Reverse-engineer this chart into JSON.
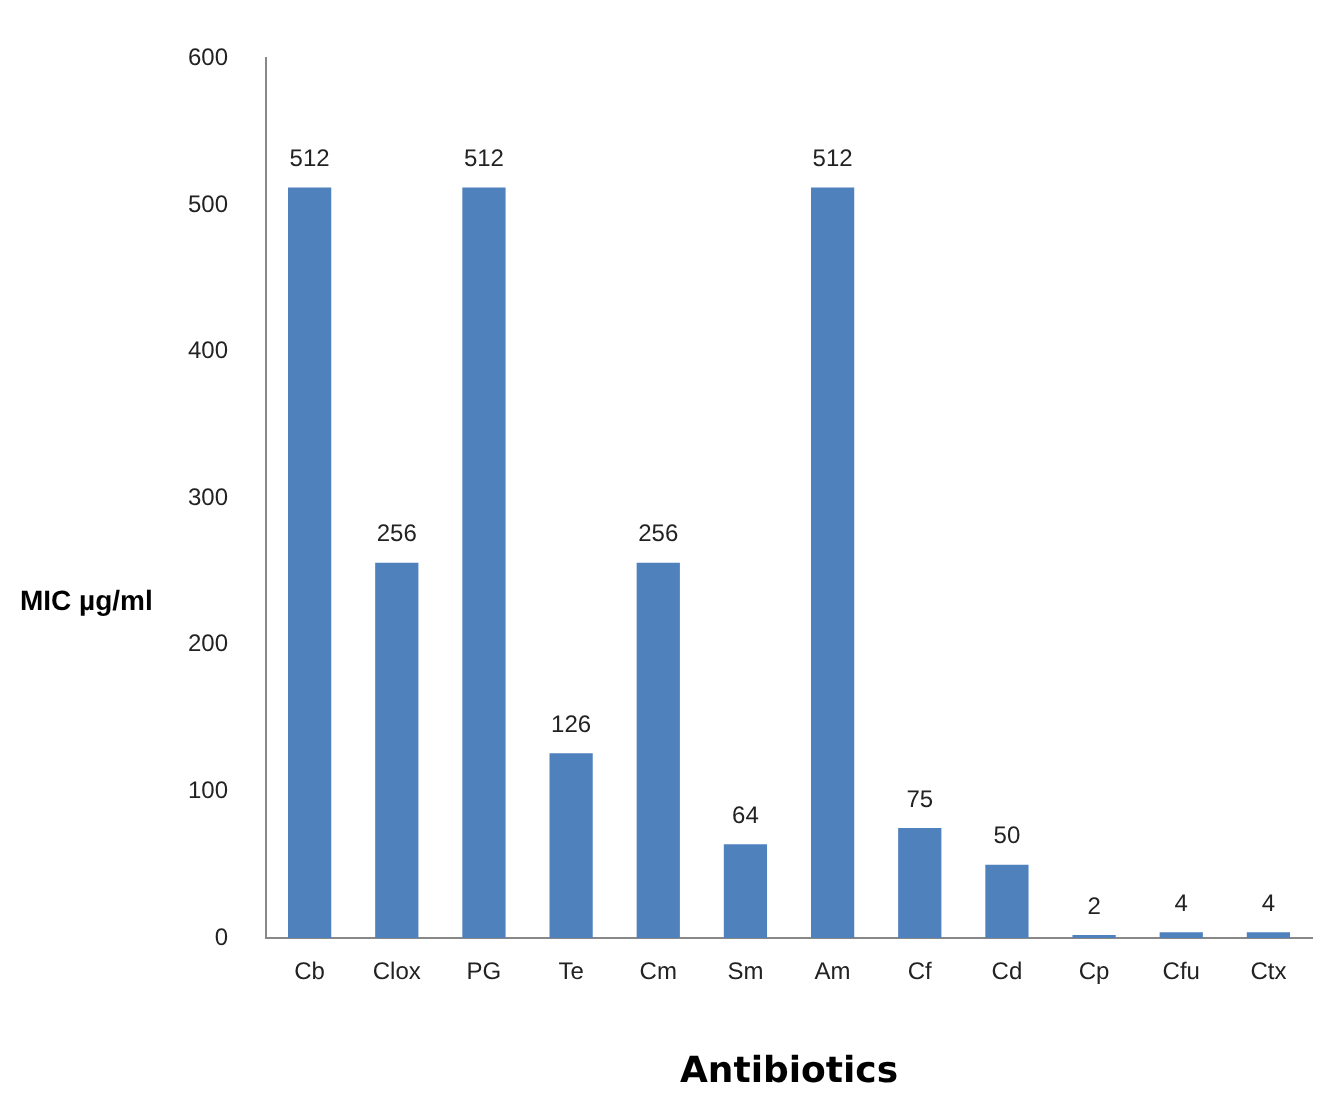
{
  "chart_data": {
    "type": "bar",
    "xlabel": "Antibiotics",
    "ylabel": "MIC µg/ml",
    "categories": [
      "Cb",
      "Clox",
      "PG",
      "Te",
      "Cm",
      "Sm",
      "Am",
      "Cf",
      "Cd",
      "Cp",
      "Cfu",
      "Ctx"
    ],
    "values": [
      512,
      256,
      512,
      126,
      256,
      64,
      512,
      75,
      50,
      2,
      4,
      4
    ],
    "color": "#4f81bd",
    "ylim": [
      0,
      600
    ],
    "yticks": [
      0,
      100,
      200,
      300,
      400,
      500,
      600
    ],
    "grid": false,
    "data_labels": true
  }
}
